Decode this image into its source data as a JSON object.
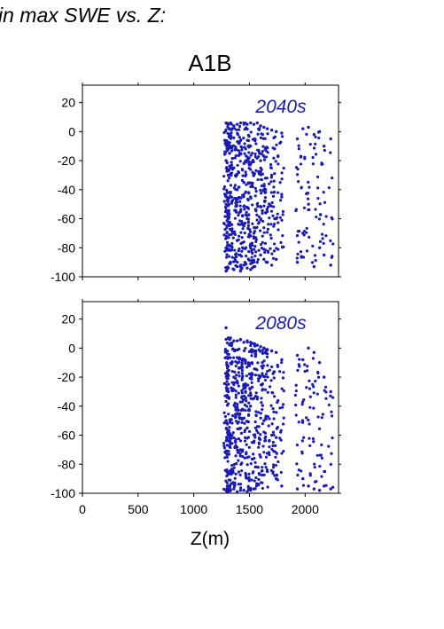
{
  "header": {
    "text": "in max SWE vs. Z:"
  },
  "scenario_title": "A1B",
  "colors": {
    "points": "#1a1ab4",
    "axis": "#000000",
    "label": "#1a1ab4"
  },
  "chart_data": [
    {
      "type": "scatter",
      "panel_label": "2040s",
      "xlim": [
        0,
        2300
      ],
      "ylim": [
        -100,
        32
      ],
      "xticks": [
        0,
        500,
        1000,
        1500,
        2000
      ],
      "yticks": [
        20,
        0,
        -20,
        -40,
        -60,
        -80,
        -100
      ],
      "show_x_tick_labels": false,
      "xlabel": "",
      "ylabel": "",
      "grid": false,
      "x_columns": [
        1290,
        1310,
        1330,
        1360,
        1390,
        1420,
        1450,
        1480,
        1510,
        1540,
        1570,
        1600,
        1630,
        1660,
        1700,
        1740,
        1790,
        1930,
        1980,
        2030,
        2080,
        2130,
        2170,
        2230
      ],
      "series": [
        {
          "x": [
            1290,
            1290,
            1290,
            1290,
            1290,
            1310,
            1310,
            1310,
            1310,
            1330,
            1330,
            1330,
            1330,
            1360,
            1360,
            1360,
            1360,
            1390,
            1390,
            1390,
            1390,
            1420,
            1420,
            1420,
            1420,
            1450,
            1450,
            1450,
            1450,
            1480,
            1480,
            1480,
            1480,
            1510,
            1510,
            1510,
            1510,
            1540,
            1540,
            1540,
            1540,
            1570,
            1570,
            1570,
            1600,
            1600,
            1600,
            1630,
            1630,
            1630,
            1660,
            1660,
            1660,
            1700,
            1700,
            1700,
            1740,
            1740,
            1740,
            1790,
            1790,
            1930,
            1930,
            1980,
            1980,
            2030,
            2030,
            2080,
            2080,
            2130,
            2130,
            2170,
            2170,
            2230,
            2230
          ],
          "y": [
            6,
            -20,
            -50,
            -80,
            -96,
            5,
            -30,
            -60,
            -94,
            6,
            -10,
            -45,
            -90,
            4,
            -25,
            -70,
            -95,
            5,
            -40,
            -75,
            -93,
            6,
            -15,
            -55,
            -96,
            6,
            -35,
            -65,
            -92,
            5,
            -20,
            -60,
            -94,
            6,
            -45,
            -80,
            -95,
            5,
            -30,
            -70,
            -93,
            6,
            -50,
            -90,
            4,
            -20,
            -85,
            3,
            -40,
            -88,
            2,
            -55,
            -90,
            1,
            -30,
            -92,
            0,
            -60,
            -88,
            -1,
            -45,
            -5,
            -90,
            2,
            -70,
            3,
            -50,
            -2,
            -93,
            0,
            -80,
            -10,
            -85,
            -5,
            -92
          ]
        }
      ]
    },
    {
      "type": "scatter",
      "panel_label": "2080s",
      "xlim": [
        0,
        2300
      ],
      "ylim": [
        -100,
        32
      ],
      "xticks": [
        0,
        500,
        1000,
        1500,
        2000
      ],
      "yticks": [
        20,
        0,
        -20,
        -40,
        -60,
        -80,
        -100
      ],
      "show_x_tick_labels": true,
      "xlabel": "Z(m)",
      "ylabel": "",
      "grid": false,
      "x_columns": [
        1290,
        1310,
        1330,
        1360,
        1390,
        1420,
        1450,
        1480,
        1510,
        1540,
        1570,
        1600,
        1630,
        1660,
        1700,
        1740,
        1790,
        1930,
        1980,
        2030,
        2080,
        2130,
        2170,
        2230
      ],
      "series": [
        {
          "x": [
            1290,
            1290,
            1290,
            1290,
            1310,
            1310,
            1310,
            1330,
            1330,
            1330,
            1360,
            1360,
            1360,
            1390,
            1390,
            1390,
            1420,
            1420,
            1420,
            1450,
            1450,
            1450,
            1480,
            1480,
            1480,
            1510,
            1510,
            1510,
            1540,
            1540,
            1540,
            1570,
            1570,
            1600,
            1600,
            1630,
            1630,
            1660,
            1660,
            1700,
            1700,
            1740,
            1740,
            1790,
            1790,
            1930,
            1930,
            1980,
            1980,
            2030,
            2030,
            2080,
            2080,
            2130,
            2130,
            2170,
            2170,
            2230,
            2230
          ],
          "y": [
            14,
            6,
            -50,
            -98,
            7,
            -30,
            -99,
            7,
            -60,
            -98,
            5,
            -20,
            -97,
            5,
            -45,
            -99,
            6,
            -70,
            -98,
            4,
            -25,
            -98,
            5,
            -55,
            -99,
            4,
            -40,
            -98,
            3,
            -65,
            -97,
            2,
            -35,
            1,
            -75,
            0,
            -50,
            -1,
            -85,
            -2,
            -60,
            -3,
            -90,
            -8,
            -95,
            -5,
            -97,
            -8,
            -90,
            0,
            -95,
            -3,
            -97,
            -10,
            -98,
            -20,
            -95,
            -30,
            -97
          ]
        }
      ]
    }
  ]
}
